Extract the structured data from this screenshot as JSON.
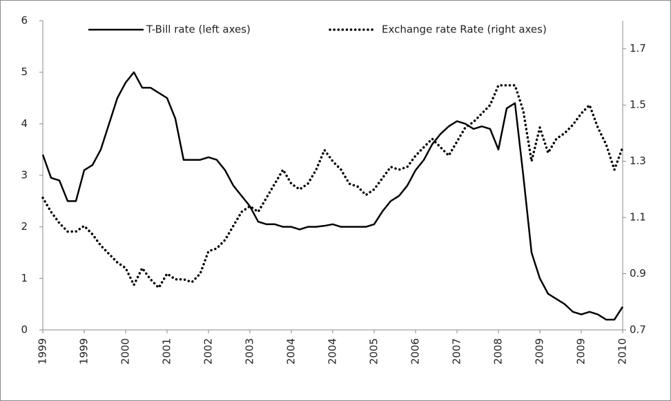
{
  "chart_data": {
    "type": "line",
    "categories": [
      "1999",
      null,
      null,
      null,
      null,
      "1999",
      null,
      null,
      null,
      null,
      "2000",
      null,
      null,
      null,
      null,
      "2001",
      null,
      null,
      null,
      null,
      "2002",
      null,
      null,
      null,
      null,
      "2003",
      null,
      null,
      null,
      null,
      "2004",
      null,
      null,
      null,
      null,
      "2004",
      null,
      null,
      null,
      null,
      "2005",
      null,
      null,
      null,
      null,
      "2006",
      null,
      null,
      null,
      null,
      "2007",
      null,
      null,
      null,
      null,
      "2008",
      null,
      null,
      null,
      null,
      "2009",
      null,
      null,
      null,
      null,
      "2009",
      null,
      null,
      null,
      null,
      "2010"
    ],
    "series": [
      {
        "name": "T-Bill rate (left axes)",
        "color": "#000000",
        "axis": "y",
        "values": [
          3.4,
          2.95,
          2.9,
          2.5,
          2.5,
          3.1,
          3.2,
          3.5,
          4.0,
          4.5,
          4.8,
          5.0,
          4.7,
          4.7,
          4.6,
          4.5,
          4.1,
          3.3,
          3.3,
          3.3,
          3.35,
          3.3,
          3.1,
          2.8,
          2.6,
          2.4,
          2.1,
          2.05,
          2.05,
          2.0,
          2.0,
          1.95,
          2.0,
          2.0,
          2.02,
          2.05,
          2.0,
          2.0,
          2.0,
          2.0,
          2.05,
          2.3,
          2.5,
          2.6,
          2.8,
          3.1,
          3.3,
          3.6,
          3.8,
          3.95,
          4.05,
          4.0,
          3.9,
          3.95,
          3.9,
          3.5,
          4.3,
          4.4,
          3.0,
          1.5,
          1.0,
          0.7,
          0.6,
          0.5,
          0.35,
          0.3,
          0.35,
          0.3,
          0.2,
          0.2,
          0.45
        ]
      },
      {
        "name": "Exchange rate  Rate (right axes)",
        "color": "#000000",
        "axis": "y2",
        "values": [
          1.17,
          1.12,
          1.08,
          1.05,
          1.05,
          1.07,
          1.04,
          1.0,
          0.97,
          0.94,
          0.92,
          0.86,
          0.92,
          0.88,
          0.85,
          0.9,
          0.88,
          0.88,
          0.87,
          0.9,
          0.98,
          0.99,
          1.02,
          1.07,
          1.12,
          1.14,
          1.12,
          1.17,
          1.22,
          1.27,
          1.22,
          1.2,
          1.22,
          1.27,
          1.34,
          1.3,
          1.27,
          1.22,
          1.21,
          1.18,
          1.2,
          1.24,
          1.28,
          1.27,
          1.28,
          1.32,
          1.35,
          1.38,
          1.35,
          1.32,
          1.37,
          1.42,
          1.44,
          1.47,
          1.5,
          1.57,
          1.57,
          1.57,
          1.48,
          1.3,
          1.42,
          1.33,
          1.38,
          1.4,
          1.43,
          1.47,
          1.5,
          1.42,
          1.36,
          1.27,
          1.35
        ]
      }
    ],
    "ylim": [
      0,
      6
    ],
    "yticks": [
      0,
      1,
      2,
      3,
      4,
      5,
      6
    ],
    "y2lim": [
      0.7,
      1.8
    ],
    "y2ticks": [
      0.7,
      0.9,
      1.1,
      1.3,
      1.5,
      1.7
    ]
  }
}
